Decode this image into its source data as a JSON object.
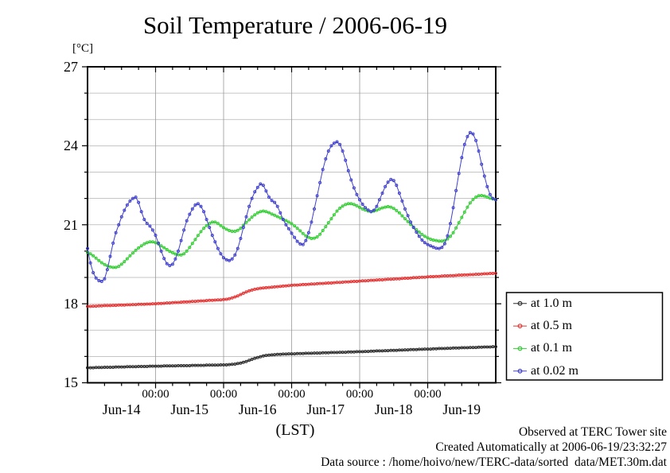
{
  "title": "Soil Temperature / 2006-06-19",
  "axes": {
    "y_unit_label": "[°C]",
    "y_tick_labels": [
      "27",
      "24",
      "21",
      "18",
      "15"
    ],
    "x_time_tick_label": "00:00",
    "x_day_labels": [
      "Jun-14",
      "Jun-15",
      "Jun-16",
      "Jun-17",
      "Jun-18",
      "Jun-19"
    ],
    "x_axis_label": "(LST)"
  },
  "footnotes": {
    "line1": "Observed at TERC Tower site",
    "line2": "Created Automatically at 2006-06-19/23:32:27",
    "line3": "Data source : /home/hoivo/new/TERC-data/sorted  data/MET.30m.dat"
  },
  "colors": {
    "frame": "#000000",
    "grid_horizontal": "#b2b2b2",
    "grid_vertical": "#999999",
    "legend_border": "#000000",
    "background": "#ffffff"
  },
  "chart_data": {
    "type": "line",
    "title": "Soil Temperature / 2006-06-19",
    "xlabel": "(LST)",
    "ylabel": "[°C]",
    "ylim": [
      15,
      27
    ],
    "y_major_tick_step": 3,
    "y_minor_tick_step": 1,
    "x_range": "Jun-14 00:00 to Jun-20 00:00 LST",
    "x_major_tick_label": "00:00",
    "x_day_categories": [
      "Jun-14",
      "Jun-15",
      "Jun-16",
      "Jun-17",
      "Jun-18",
      "Jun-19"
    ],
    "sample_interval_hours": 1,
    "grid": true,
    "legend_position": "outside-right-bottom",
    "series": [
      {
        "name": "at 1.0 m",
        "color": "#2e2e2e",
        "values": [
          15.57,
          15.57,
          15.57,
          15.58,
          15.58,
          15.58,
          15.59,
          15.59,
          15.59,
          15.59,
          15.6,
          15.6,
          15.6,
          15.6,
          15.61,
          15.61,
          15.61,
          15.61,
          15.62,
          15.62,
          15.62,
          15.62,
          15.63,
          15.63,
          15.63,
          15.63,
          15.63,
          15.64,
          15.64,
          15.64,
          15.64,
          15.64,
          15.65,
          15.65,
          15.65,
          15.65,
          15.65,
          15.66,
          15.66,
          15.66,
          15.66,
          15.66,
          15.67,
          15.67,
          15.67,
          15.67,
          15.67,
          15.68,
          15.68,
          15.68,
          15.69,
          15.7,
          15.71,
          15.73,
          15.75,
          15.78,
          15.81,
          15.85,
          15.89,
          15.93,
          15.96,
          15.99,
          16.02,
          16.04,
          16.05,
          16.06,
          16.07,
          16.08,
          16.08,
          16.09,
          16.09,
          16.1,
          16.1,
          16.1,
          16.11,
          16.11,
          16.11,
          16.12,
          16.12,
          16.12,
          16.13,
          16.13,
          16.13,
          16.14,
          16.14,
          16.14,
          16.15,
          16.15,
          16.15,
          16.16,
          16.16,
          16.16,
          16.17,
          16.17,
          16.17,
          16.18,
          16.18,
          16.18,
          16.19,
          16.19,
          16.2,
          16.2,
          16.21,
          16.21,
          16.21,
          16.22,
          16.22,
          16.23,
          16.23,
          16.23,
          16.24,
          16.24,
          16.25,
          16.25,
          16.26,
          16.26,
          16.26,
          16.27,
          16.27,
          16.28,
          16.28,
          16.28,
          16.29,
          16.29,
          16.3,
          16.3,
          16.3,
          16.31,
          16.31,
          16.32,
          16.32,
          16.32,
          16.33,
          16.33,
          16.33,
          16.34,
          16.34,
          16.34,
          16.35,
          16.35,
          16.36,
          16.36,
          16.36,
          16.37,
          16.37
        ]
      },
      {
        "name": "at 0.5 m",
        "color": "#e33434",
        "values": [
          17.9,
          17.9,
          17.91,
          17.91,
          17.92,
          17.92,
          17.93,
          17.93,
          17.93,
          17.94,
          17.94,
          17.95,
          17.95,
          17.95,
          17.96,
          17.96,
          17.97,
          17.97,
          17.98,
          17.98,
          17.98,
          17.99,
          17.99,
          18.0,
          18.0,
          18.01,
          18.01,
          18.02,
          18.03,
          18.03,
          18.04,
          18.05,
          18.05,
          18.06,
          18.07,
          18.07,
          18.08,
          18.09,
          18.09,
          18.1,
          18.11,
          18.11,
          18.12,
          18.13,
          18.13,
          18.14,
          18.15,
          18.15,
          18.16,
          18.17,
          18.19,
          18.22,
          18.26,
          18.3,
          18.35,
          18.4,
          18.45,
          18.49,
          18.52,
          18.55,
          18.57,
          18.59,
          18.6,
          18.61,
          18.62,
          18.63,
          18.64,
          18.65,
          18.66,
          18.67,
          18.68,
          18.69,
          18.7,
          18.71,
          18.71,
          18.72,
          18.73,
          18.73,
          18.74,
          18.75,
          18.75,
          18.76,
          18.77,
          18.77,
          18.78,
          18.79,
          18.79,
          18.8,
          18.81,
          18.81,
          18.82,
          18.83,
          18.83,
          18.84,
          18.85,
          18.85,
          18.86,
          18.87,
          18.87,
          18.88,
          18.89,
          18.89,
          18.9,
          18.91,
          18.91,
          18.92,
          18.93,
          18.93,
          18.94,
          18.95,
          18.95,
          18.96,
          18.97,
          18.97,
          18.98,
          18.99,
          18.99,
          19.0,
          19.01,
          19.01,
          19.02,
          19.03,
          19.03,
          19.04,
          19.04,
          19.05,
          19.06,
          19.06,
          19.07,
          19.07,
          19.08,
          19.09,
          19.09,
          19.1,
          19.1,
          19.11,
          19.11,
          19.12,
          19.12,
          19.13,
          19.14,
          19.14,
          19.15,
          19.15,
          19.16
        ]
      },
      {
        "name": "at 0.1 m",
        "color": "#33cc33",
        "values": [
          19.95,
          19.9,
          19.82,
          19.73,
          19.64,
          19.56,
          19.49,
          19.44,
          19.4,
          19.38,
          19.38,
          19.42,
          19.5,
          19.6,
          19.71,
          19.82,
          19.93,
          20.03,
          20.12,
          20.2,
          20.27,
          20.32,
          20.35,
          20.35,
          20.32,
          20.27,
          20.2,
          20.13,
          20.06,
          19.99,
          19.94,
          19.89,
          19.86,
          19.85,
          19.9,
          20.0,
          20.14,
          20.29,
          20.44,
          20.59,
          20.74,
          20.87,
          20.97,
          21.05,
          21.1,
          21.1,
          21.05,
          20.97,
          20.89,
          20.83,
          20.78,
          20.75,
          20.75,
          20.79,
          20.87,
          20.98,
          21.09,
          21.19,
          21.29,
          21.38,
          21.45,
          21.5,
          21.52,
          21.5,
          21.46,
          21.41,
          21.36,
          21.31,
          21.26,
          21.21,
          21.16,
          21.1,
          21.04,
          20.96,
          20.87,
          20.77,
          20.67,
          20.58,
          20.52,
          20.48,
          20.49,
          20.54,
          20.64,
          20.78,
          20.93,
          21.08,
          21.23,
          21.38,
          21.52,
          21.63,
          21.71,
          21.77,
          21.8,
          21.8,
          21.77,
          21.72,
          21.66,
          21.6,
          21.56,
          21.52,
          21.5,
          21.52,
          21.55,
          21.6,
          21.64,
          21.67,
          21.69,
          21.67,
          21.62,
          21.54,
          21.45,
          21.34,
          21.23,
          21.12,
          21.01,
          20.91,
          20.81,
          20.72,
          20.63,
          20.56,
          20.5,
          20.45,
          20.42,
          20.4,
          20.38,
          20.38,
          20.4,
          20.46,
          20.56,
          20.7,
          20.88,
          21.08,
          21.28,
          21.48,
          21.67,
          21.83,
          21.96,
          22.05,
          22.1,
          22.11,
          22.09,
          22.05,
          22.01,
          21.98,
          21.95
        ]
      },
      {
        "name": "at 0.02 m",
        "color": "#4040cc",
        "values": [
          20.1,
          19.55,
          19.18,
          18.98,
          18.88,
          18.85,
          18.95,
          19.3,
          19.8,
          20.3,
          20.7,
          21.0,
          21.3,
          21.55,
          21.75,
          21.9,
          22.0,
          22.05,
          21.85,
          21.5,
          21.2,
          21.05,
          20.95,
          20.8,
          20.6,
          20.3,
          20.0,
          19.72,
          19.52,
          19.45,
          19.5,
          19.7,
          20.0,
          20.4,
          20.8,
          21.15,
          21.4,
          21.6,
          21.75,
          21.8,
          21.7,
          21.5,
          21.2,
          20.9,
          20.6,
          20.35,
          20.1,
          19.9,
          19.75,
          19.67,
          19.64,
          19.7,
          19.85,
          20.1,
          20.48,
          20.9,
          21.3,
          21.7,
          22.0,
          22.25,
          22.42,
          22.55,
          22.5,
          22.28,
          22.05,
          21.92,
          21.85,
          21.7,
          21.45,
          21.2,
          21.0,
          20.85,
          20.68,
          20.52,
          20.37,
          20.27,
          20.25,
          20.4,
          20.7,
          21.1,
          21.6,
          22.1,
          22.6,
          23.1,
          23.5,
          23.8,
          24.0,
          24.1,
          24.15,
          24.05,
          23.8,
          23.45,
          23.05,
          22.7,
          22.4,
          22.15,
          21.95,
          21.78,
          21.65,
          21.56,
          21.5,
          21.55,
          21.7,
          21.95,
          22.2,
          22.45,
          22.62,
          22.72,
          22.68,
          22.5,
          22.2,
          21.9,
          21.6,
          21.35,
          21.1,
          20.9,
          20.72,
          20.56,
          20.42,
          20.32,
          20.25,
          20.2,
          20.15,
          20.11,
          20.1,
          20.14,
          20.28,
          20.58,
          21.05,
          21.65,
          22.3,
          22.95,
          23.55,
          24.05,
          24.35,
          24.5,
          24.45,
          24.2,
          23.8,
          23.3,
          22.85,
          22.45,
          22.15,
          22.0,
          21.95
        ]
      }
    ]
  }
}
